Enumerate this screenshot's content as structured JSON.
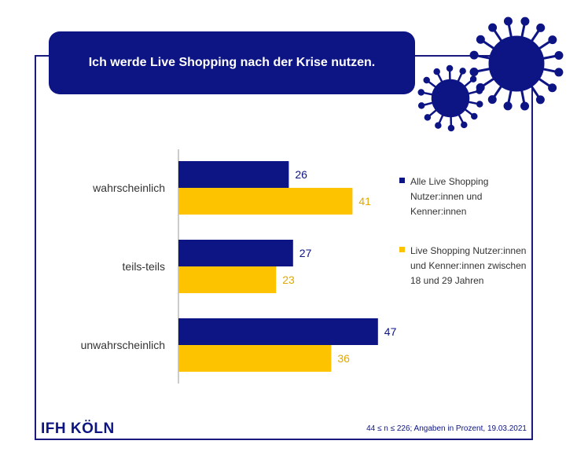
{
  "title": "Ich werde Live Shopping nach der Krise nutzen.",
  "colors": {
    "series1": "#0d1484",
    "series2": "#fdc300",
    "frame": "#1a1a7e"
  },
  "icons": [
    "virus-icon-large",
    "virus-icon-small"
  ],
  "chart_data": {
    "type": "bar",
    "orientation": "horizontal",
    "categories": [
      "wahrscheinlich",
      "teils-teils",
      "unwahrscheinlich"
    ],
    "series": [
      {
        "name": "Alle Live Shopping Nutzer:innen und Kenner:innen",
        "values": [
          26,
          27,
          47
        ],
        "color": "#0d1484"
      },
      {
        "name": "Live Shopping Nutzer:innen und Kenner:innen zwischen 18 und 29 Jahren",
        "values": [
          41,
          23,
          36
        ],
        "color": "#fdc300"
      }
    ],
    "xlim": [
      0,
      50
    ],
    "legend_position": "right",
    "grid": false
  },
  "legend": {
    "items": [
      {
        "label": "Alle Live Shopping Nutzer:innen und Kenner:innen"
      },
      {
        "label": "Live Shopping Nutzer:innen und Kenner:innen zwischen 18 und 29 Jahren"
      }
    ]
  },
  "logo": "IFH KÖLN",
  "footnote": "44 ≤ n ≤ 226; Angaben in Prozent, 19.03.2021"
}
